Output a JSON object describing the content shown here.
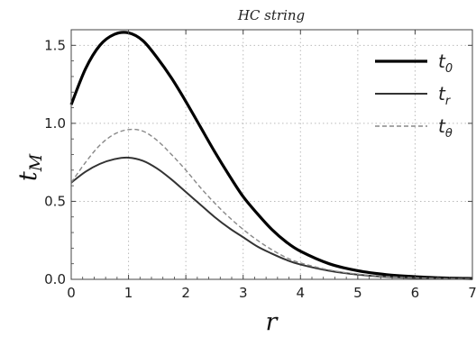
{
  "chart_data": {
    "type": "line",
    "title": "HC string",
    "xlabel": "r",
    "ylabel": "t_M",
    "xlim": [
      0,
      7
    ],
    "ylim": [
      0,
      1.6
    ],
    "xticks": [
      0,
      1,
      2,
      3,
      4,
      5,
      6,
      7
    ],
    "yticks": [
      0.0,
      0.5,
      1.0,
      1.5
    ],
    "xtick_labels": [
      "0",
      "1",
      "2",
      "3",
      "4",
      "5",
      "6",
      "7"
    ],
    "ytick_labels": [
      "0.0",
      "0.5",
      "1.0",
      "1.5"
    ],
    "grid": true,
    "legend_position": "top-right",
    "series": [
      {
        "name": "t_0",
        "legend_main": "t",
        "legend_sub": "0",
        "style": "solid-thick",
        "color": "#000000",
        "x": [
          0,
          0.25,
          0.5,
          0.75,
          1.0,
          1.25,
          1.5,
          1.75,
          2.0,
          2.25,
          2.5,
          2.75,
          3.0,
          3.25,
          3.5,
          3.75,
          4.0,
          4.5,
          5.0,
          5.5,
          6.0,
          6.5,
          7.0
        ],
        "y": [
          1.12,
          1.35,
          1.5,
          1.57,
          1.58,
          1.53,
          1.42,
          1.29,
          1.14,
          0.98,
          0.82,
          0.67,
          0.53,
          0.42,
          0.32,
          0.24,
          0.18,
          0.1,
          0.055,
          0.03,
          0.017,
          0.009,
          0.005
        ]
      },
      {
        "name": "t_r",
        "legend_main": "t",
        "legend_sub": "r",
        "style": "solid",
        "color": "#333333",
        "x": [
          0,
          0.25,
          0.5,
          0.75,
          1.0,
          1.25,
          1.5,
          1.75,
          2.0,
          2.25,
          2.5,
          2.75,
          3.0,
          3.25,
          3.5,
          3.75,
          4.0,
          4.5,
          5.0,
          5.5,
          6.0,
          6.5,
          7.0
        ],
        "y": [
          0.62,
          0.69,
          0.74,
          0.77,
          0.78,
          0.76,
          0.71,
          0.64,
          0.56,
          0.48,
          0.4,
          0.33,
          0.27,
          0.21,
          0.165,
          0.125,
          0.095,
          0.055,
          0.03,
          0.016,
          0.009,
          0.005,
          0.003
        ]
      },
      {
        "name": "t_θ",
        "legend_main": "t",
        "legend_sub": "θ",
        "style": "dashed",
        "color": "#888888",
        "x": [
          0,
          0.25,
          0.5,
          0.75,
          1.0,
          1.25,
          1.5,
          1.75,
          2.0,
          2.25,
          2.5,
          2.75,
          3.0,
          3.25,
          3.5,
          3.75,
          4.0,
          4.5,
          5.0,
          5.5,
          6.0,
          6.5,
          7.0
        ],
        "y": [
          0.62,
          0.75,
          0.86,
          0.93,
          0.96,
          0.95,
          0.89,
          0.8,
          0.7,
          0.59,
          0.49,
          0.4,
          0.32,
          0.25,
          0.19,
          0.14,
          0.105,
          0.06,
          0.033,
          0.018,
          0.01,
          0.005,
          0.003
        ]
      }
    ]
  }
}
